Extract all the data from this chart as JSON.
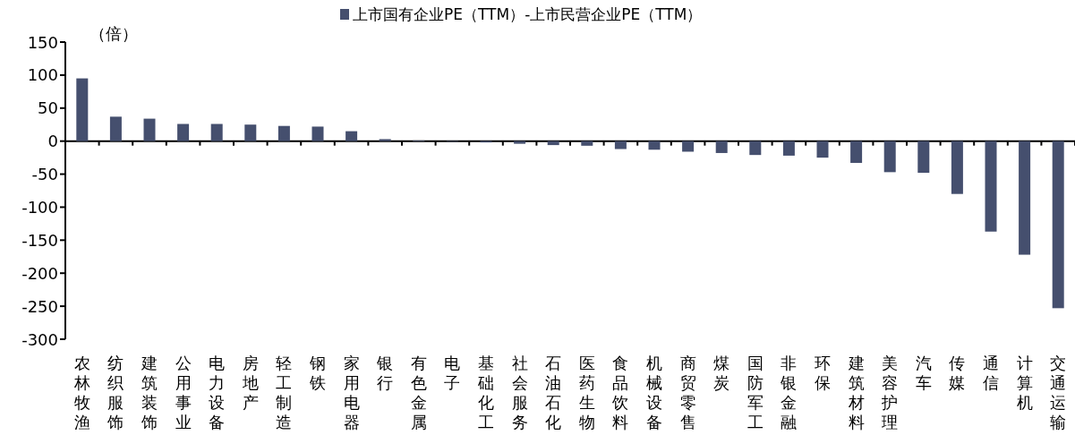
{
  "chart_data": {
    "type": "bar",
    "ylabel": "（倍）",
    "legend": "top",
    "categories": [
      "农林牧渔",
      "纺织服饰",
      "建筑装饰",
      "公用事业",
      "电力设备",
      "房地产",
      "轻工制造",
      "钢铁",
      "家用电器",
      "银行",
      "有色金属",
      "电子",
      "基础化工",
      "社会服务",
      "石油石化",
      "医药生物",
      "食品饮料",
      "机械设备",
      "商贸零售",
      "煤炭",
      "国防军工",
      "非银金融",
      "环保",
      "建筑材料",
      "美容护理",
      "汽车",
      "传媒",
      "通信",
      "计算机",
      "交通运输"
    ],
    "series": [
      {
        "name": "上市国有企业PE（TTM）-上市民营企业PE（TTM）",
        "color": "#454f6e",
        "values": [
          95,
          37,
          34,
          26,
          26,
          25,
          23,
          22,
          15,
          3,
          1,
          0,
          -2,
          -4,
          -6,
          -7,
          -12,
          -13,
          -16,
          -18,
          -21,
          -22,
          -25,
          -33,
          -47,
          -48,
          -80,
          -137,
          -172,
          -253
        ]
      }
    ],
    "ylim": [
      -300,
      150
    ],
    "yticks": [
      -300,
      -250,
      -200,
      -150,
      -100,
      -50,
      0,
      50,
      100,
      150
    ]
  }
}
